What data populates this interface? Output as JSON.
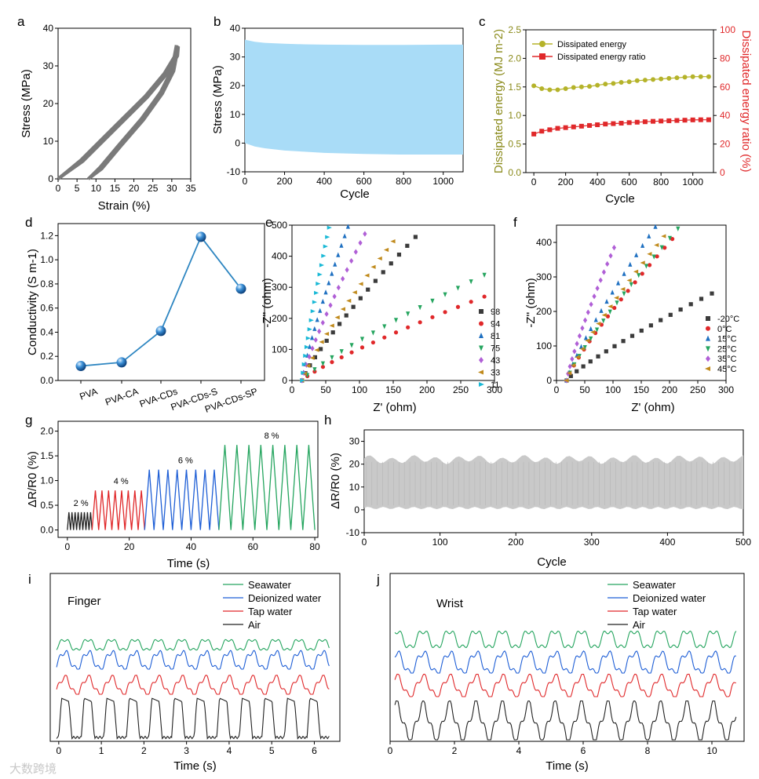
{
  "watermark": "大数跨境",
  "chart_data": [
    {
      "panel": "a",
      "type": "line",
      "xlabel": "Strain (%)",
      "ylabel": "Stress (MPa)",
      "xlim": [
        0,
        35
      ],
      "ylim": [
        0,
        40
      ],
      "xticks": [
        0,
        5,
        10,
        15,
        20,
        25,
        30,
        35
      ],
      "yticks": [
        0,
        10,
        20,
        30,
        40
      ],
      "color": "#7a7a7a",
      "loops": [
        {
          "load": [
            [
              0,
              0
            ],
            [
              6,
              5
            ],
            [
              15,
              14
            ],
            [
              23,
              22
            ],
            [
              28,
              28
            ],
            [
              31,
              33
            ],
            [
              31.2,
              35.5
            ]
          ],
          "unload": [
            [
              31.2,
              35.5
            ],
            [
              30,
              29
            ],
            [
              27,
              23
            ],
            [
              22,
              16
            ],
            [
              16,
              9
            ],
            [
              11,
              3
            ],
            [
              8,
              0
            ]
          ]
        }
      ]
    },
    {
      "panel": "b",
      "type": "area",
      "xlabel": "Cycle",
      "ylabel": "Stress (MPa)",
      "xlim": [
        0,
        1100
      ],
      "ylim": [
        -10,
        40
      ],
      "xticks": [
        0,
        200,
        400,
        600,
        800,
        1000
      ],
      "yticks": [
        -10,
        0,
        10,
        20,
        30,
        40
      ],
      "color": "#a9dcf7",
      "x": [
        0,
        50,
        100,
        200,
        300,
        400,
        600,
        800,
        1000,
        1100
      ],
      "upper": [
        36,
        35.3,
        34.9,
        34.6,
        34.4,
        34.3,
        34.2,
        34.2,
        34.3,
        34.3
      ],
      "lower": [
        0,
        -1.2,
        -1.8,
        -2.6,
        -3.0,
        -3.4,
        -3.8,
        -4.0,
        -4.0,
        -4.0
      ]
    },
    {
      "panel": "c",
      "type": "line",
      "xlabel": "Cycle",
      "ylabel": "Dissipated energy (MJ m-2)",
      "ylabel_right": "Dissipated energy ratio (%)",
      "xlim": [
        -50,
        1130
      ],
      "ylim": [
        0,
        2.5
      ],
      "ylim_right": [
        0,
        100
      ],
      "xticks": [
        0,
        200,
        400,
        600,
        800,
        1000
      ],
      "yticks": [
        0.0,
        0.5,
        1.0,
        1.5,
        2.0,
        2.5
      ],
      "yticks_right": [
        0,
        20,
        40,
        60,
        80,
        100
      ],
      "left_color": "#8a8a1a",
      "right_color": "#e0282a",
      "series": [
        {
          "name": "Dissipated energy",
          "axis": "left",
          "color": "#b5b32a",
          "x": [
            0,
            50,
            100,
            150,
            200,
            250,
            300,
            350,
            400,
            450,
            500,
            550,
            600,
            650,
            700,
            750,
            800,
            850,
            900,
            950,
            1000,
            1050,
            1100
          ],
          "values": [
            1.52,
            1.47,
            1.45,
            1.45,
            1.47,
            1.49,
            1.5,
            1.51,
            1.53,
            1.55,
            1.56,
            1.58,
            1.59,
            1.61,
            1.62,
            1.63,
            1.64,
            1.65,
            1.66,
            1.67,
            1.68,
            1.68,
            1.68
          ]
        },
        {
          "name": "Dissipated energy ratio",
          "axis": "right",
          "color": "#e0282a",
          "x": [
            0,
            50,
            100,
            150,
            200,
            250,
            300,
            350,
            400,
            450,
            500,
            550,
            600,
            650,
            700,
            750,
            800,
            850,
            900,
            950,
            1000,
            1050,
            1100
          ],
          "values": [
            27,
            29,
            30,
            31,
            31.5,
            32,
            32.5,
            33,
            33.5,
            34,
            34.3,
            34.6,
            35,
            35.3,
            35.6,
            35.9,
            36.1,
            36.3,
            36.5,
            36.7,
            36.9,
            37,
            37
          ]
        }
      ]
    },
    {
      "panel": "d",
      "type": "line",
      "ylabel": "Conductivity (S m-1)",
      "ylim": [
        0,
        1.3
      ],
      "yticks": [
        0.0,
        0.2,
        0.4,
        0.6,
        0.8,
        1.0,
        1.2
      ],
      "color": "#2e86c1",
      "categories": [
        "PVA",
        "PVA-CA",
        "PVA-CDs",
        "PVA-CDs-S",
        "PVA-CDs-SP"
      ],
      "values": [
        0.12,
        0.15,
        0.41,
        1.19,
        0.76
      ]
    },
    {
      "panel": "e",
      "type": "scatter",
      "xlabel": "Z' (ohm)",
      "ylabel": "-Z'' (ohm)",
      "xlim": [
        0,
        300
      ],
      "ylim": [
        0,
        500
      ],
      "xticks": [
        0,
        50,
        100,
        150,
        200,
        250,
        300
      ],
      "yticks": [
        0,
        100,
        200,
        300,
        400,
        500
      ],
      "series": [
        {
          "name": "98",
          "marker": "square",
          "color": "#3b3b3b",
          "start": 15,
          "end": [
            183,
            462
          ]
        },
        {
          "name": "94",
          "marker": "circle",
          "color": "#e0282a",
          "start": 15,
          "end": [
            285,
            270
          ]
        },
        {
          "name": "81",
          "marker": "triangle-up",
          "color": "#1f70c1",
          "start": 15,
          "end": [
            83,
            495
          ]
        },
        {
          "name": "75",
          "marker": "triangle-down",
          "color": "#25a55f",
          "start": 15,
          "end": [
            285,
            340
          ]
        },
        {
          "name": "43",
          "marker": "diamond",
          "color": "#b05fd6",
          "start": 15,
          "end": [
            108,
            472
          ]
        },
        {
          "name": "33",
          "marker": "triangle-left",
          "color": "#c08a1c",
          "start": 15,
          "end": [
            150,
            448
          ]
        },
        {
          "name": "11",
          "marker": "triangle-right",
          "color": "#1ab9d6",
          "start": 15,
          "end": [
            55,
            492
          ]
        }
      ]
    },
    {
      "panel": "f",
      "type": "scatter",
      "xlabel": "Z' (ohm)",
      "ylabel": "-Z'' (ohm)",
      "xlim": [
        0,
        300
      ],
      "ylim": [
        0,
        450
      ],
      "xticks": [
        0,
        50,
        100,
        150,
        200,
        250,
        300
      ],
      "yticks": [
        0,
        100,
        200,
        300,
        400
      ],
      "series": [
        {
          "name": "-20°C",
          "marker": "square",
          "color": "#3b3b3b",
          "start": 18,
          "end": [
            275,
            252
          ]
        },
        {
          "name": "0°C",
          "marker": "circle",
          "color": "#e0282a",
          "start": 18,
          "end": [
            205,
            410
          ]
        },
        {
          "name": "15°C",
          "marker": "triangle-up",
          "color": "#1f70c1",
          "start": 18,
          "end": [
            175,
            445
          ]
        },
        {
          "name": "25°C",
          "marker": "triangle-down",
          "color": "#25a55f",
          "start": 18,
          "end": [
            215,
            440
          ]
        },
        {
          "name": "35°C",
          "marker": "diamond",
          "color": "#b05fd6",
          "start": 18,
          "end": [
            102,
            385
          ]
        },
        {
          "name": "45°C",
          "marker": "triangle-left",
          "color": "#c08a1c",
          "start": 18,
          "end": [
            190,
            418
          ]
        }
      ]
    },
    {
      "panel": "g",
      "type": "line",
      "xlabel": "Time (s)",
      "ylabel": "ΔR/R0 (%)",
      "xlim": [
        -3,
        81
      ],
      "ylim": [
        -0.15,
        2.2
      ],
      "xticks": [
        0,
        20,
        40,
        60,
        80
      ],
      "yticks": [
        0.0,
        0.5,
        1.0,
        1.5,
        2.0
      ],
      "series": [
        {
          "name": "2 %",
          "color": "#222222",
          "x_range": [
            0,
            8
          ],
          "cycles": 8,
          "peak": 0.36
        },
        {
          "name": "4 %",
          "color": "#e0282a",
          "x_range": [
            8,
            25
          ],
          "cycles": 8,
          "peak": 0.8
        },
        {
          "name": "6 %",
          "color": "#1f5fd6",
          "x_range": [
            25,
            49
          ],
          "cycles": 8,
          "peak": 1.22
        },
        {
          "name": "8 %",
          "color": "#25a55f",
          "x_range": [
            49,
            80
          ],
          "cycles": 8,
          "peak": 1.72
        }
      ]
    },
    {
      "panel": "h",
      "type": "area",
      "xlabel": "Cycle",
      "ylabel": "ΔR/R0 (%)",
      "xlim": [
        0,
        500
      ],
      "ylim": [
        -10,
        35
      ],
      "xticks": [
        0,
        100,
        200,
        300,
        400,
        500
      ],
      "yticks": [
        -10,
        0,
        10,
        20,
        30
      ],
      "color": "#c9c9c9",
      "x": [
        0,
        100,
        200,
        300,
        400,
        500
      ],
      "upper": [
        23,
        22.5,
        22.5,
        22,
        23,
        23
      ],
      "lower": [
        0.5,
        0.8,
        0.5,
        0.5,
        0.5,
        0.5
      ]
    },
    {
      "panel": "i",
      "type": "line",
      "title": "Finger",
      "xlabel": "Time (s)",
      "xlim": [
        -0.2,
        6.6
      ],
      "xticks": [
        0,
        1,
        2,
        3,
        4,
        5,
        6
      ],
      "series": [
        {
          "name": "Seawater",
          "color": "#25a55f",
          "period": 0.55
        },
        {
          "name": "Deionized water",
          "color": "#1f5fd6",
          "period": 0.55
        },
        {
          "name": "Tap water",
          "color": "#e0282a",
          "period": 0.55
        },
        {
          "name": "Air",
          "color": "#222222",
          "period": 0.53
        }
      ]
    },
    {
      "panel": "j",
      "type": "line",
      "title": "Wrist",
      "xlabel": "Time (s)",
      "xlim": [
        0,
        11
      ],
      "xticks": [
        0,
        2,
        4,
        6,
        8,
        10
      ],
      "series": [
        {
          "name": "Seawater",
          "color": "#25a55f",
          "period": 0.82
        },
        {
          "name": "Deionized water",
          "color": "#1f5fd6",
          "period": 0.82
        },
        {
          "name": "Tap water",
          "color": "#e0282a",
          "period": 0.82
        },
        {
          "name": "Air",
          "color": "#222222",
          "period": 0.82
        }
      ]
    }
  ]
}
